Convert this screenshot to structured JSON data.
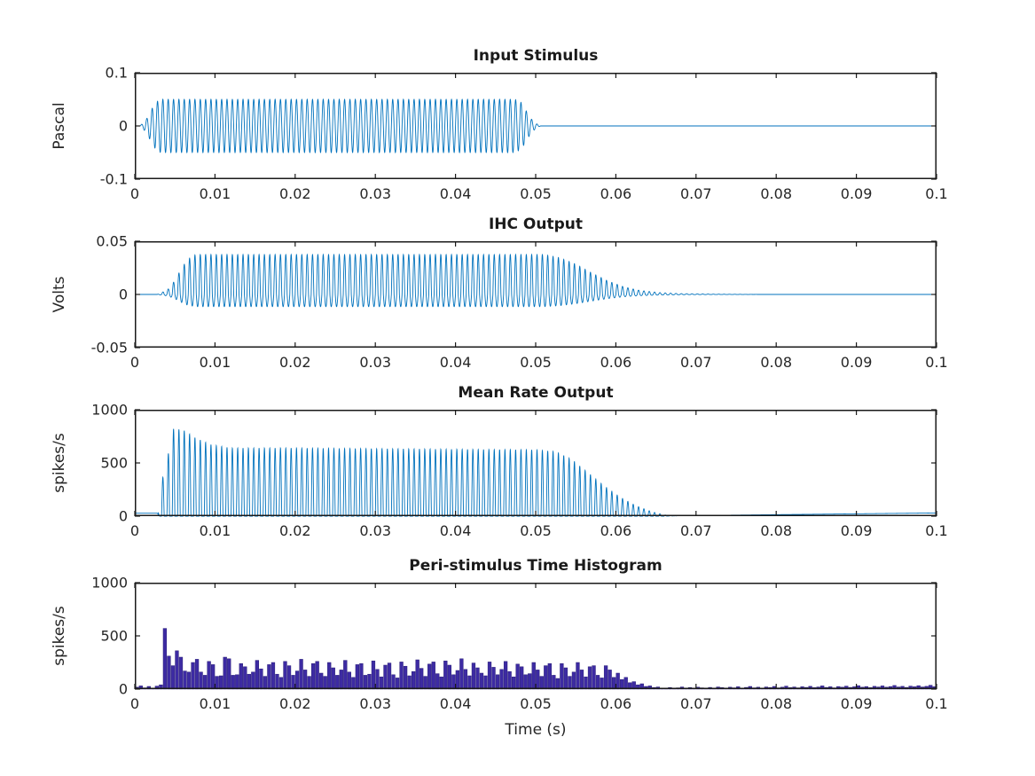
{
  "figure": {
    "background": "#ffffff"
  },
  "axis": {
    "xlim": [
      0,
      0.1
    ],
    "xticks": [
      0,
      0.01,
      0.02,
      0.03,
      0.04,
      0.05,
      0.06,
      0.07,
      0.08,
      0.09,
      0.1
    ],
    "xtick_labels": [
      "0",
      "0.01",
      "0.02",
      "0.03",
      "0.04",
      "0.05",
      "0.06",
      "0.07",
      "0.08",
      "0.09",
      "0.1"
    ],
    "frame_color": "#1a1a1a",
    "text_color": "#262626"
  },
  "chart_data": [
    {
      "type": "line",
      "title": "Input Stimulus",
      "ylabel": "Pascal",
      "ylim": [
        -0.1,
        0.1
      ],
      "yticks": [
        0.1,
        0,
        -0.1
      ],
      "ytick_labels": [
        "0.1",
        "0",
        "-0.1"
      ],
      "line_color": "#0072BD",
      "grid": false,
      "signal": {
        "kind": "tone",
        "freq": 1500,
        "amp_pos": 0.05,
        "amp_neg": 0.05,
        "envelope": [
          [
            0,
            0
          ],
          [
            0.0006,
            0
          ],
          [
            0.001,
            0.1
          ],
          [
            0.0015,
            0.28
          ],
          [
            0.002,
            0.58
          ],
          [
            0.0026,
            0.88
          ],
          [
            0.0032,
            1
          ],
          [
            0.0474,
            1
          ],
          [
            0.0482,
            0.88
          ],
          [
            0.0488,
            0.58
          ],
          [
            0.0494,
            0.28
          ],
          [
            0.05,
            0.1
          ],
          [
            0.0506,
            0
          ],
          [
            0.1,
            0
          ]
        ]
      }
    },
    {
      "type": "line",
      "title": "IHC Output",
      "ylabel": "Volts",
      "ylim": [
        -0.05,
        0.05
      ],
      "yticks": [
        0.05,
        0,
        -0.05
      ],
      "ytick_labels": [
        "0.05",
        "0",
        "-0.05"
      ],
      "line_color": "#0072BD",
      "grid": false,
      "signal": {
        "kind": "tone",
        "freq": 1500,
        "amp_pos": 0.0375,
        "amp_neg": 0.0115,
        "envelope": [
          [
            0,
            0
          ],
          [
            0.0028,
            0
          ],
          [
            0.0034,
            0.05
          ],
          [
            0.0042,
            0.14
          ],
          [
            0.005,
            0.35
          ],
          [
            0.0058,
            0.65
          ],
          [
            0.0066,
            0.88
          ],
          [
            0.0076,
            1
          ],
          [
            0.051,
            1
          ],
          [
            0.053,
            0.92
          ],
          [
            0.055,
            0.76
          ],
          [
            0.057,
            0.54
          ],
          [
            0.059,
            0.34
          ],
          [
            0.061,
            0.19
          ],
          [
            0.063,
            0.1
          ],
          [
            0.0655,
            0.045
          ],
          [
            0.068,
            0.02
          ],
          [
            0.072,
            0.008
          ],
          [
            0.078,
            0
          ],
          [
            0.1,
            0
          ]
        ]
      }
    },
    {
      "type": "line",
      "title": "Mean Rate Output",
      "ylabel": "spikes/s",
      "ylim": [
        0,
        1000
      ],
      "yticks": [
        1000,
        500,
        0
      ],
      "ytick_labels": [
        "1000",
        "500",
        "0"
      ],
      "line_color": "#0072BD",
      "grid": false,
      "signal": {
        "kind": "rate",
        "freq": 1500,
        "peak": 820,
        "exponent": 1.2,
        "envelope": [
          [
            0,
            0
          ],
          [
            0.0029,
            0
          ],
          [
            0.0033,
            0.44
          ],
          [
            0.004,
            0.46
          ],
          [
            0.0043,
            0.9
          ],
          [
            0.0048,
            1.0
          ],
          [
            0.006,
            0.99
          ],
          [
            0.0075,
            0.9
          ],
          [
            0.0095,
            0.82
          ],
          [
            0.012,
            0.78
          ],
          [
            0.02,
            0.78
          ],
          [
            0.035,
            0.77
          ],
          [
            0.05,
            0.76
          ],
          [
            0.0525,
            0.74
          ],
          [
            0.0545,
            0.65
          ],
          [
            0.0565,
            0.5
          ],
          [
            0.0585,
            0.35
          ],
          [
            0.0605,
            0.22
          ],
          [
            0.0625,
            0.12
          ],
          [
            0.0645,
            0.05
          ],
          [
            0.066,
            0.015
          ],
          [
            0.0675,
            0
          ],
          [
            0.1,
            0
          ]
        ],
        "baseline": [
          [
            0,
            28
          ],
          [
            0.0028,
            28
          ],
          [
            0.0031,
            0
          ],
          [
            0.066,
            0
          ],
          [
            0.068,
            4
          ],
          [
            0.08,
            14
          ],
          [
            0.1,
            30
          ]
        ]
      }
    },
    {
      "type": "bar",
      "title": "Peri-stimulus Time Histogram",
      "ylabel": "spikes/s",
      "xlabel": "Time (s)",
      "ylim": [
        0,
        1000
      ],
      "yticks": [
        1000,
        500,
        0
      ],
      "ytick_labels": [
        "1000",
        "500",
        "0"
      ],
      "bar_color": "#3D2BA3",
      "bar_edge": "#2A1E78",
      "grid": false,
      "bin_width": 0.0005,
      "values": [
        18,
        30,
        12,
        25,
        8,
        28,
        40,
        570,
        310,
        220,
        360,
        300,
        170,
        160,
        250,
        280,
        160,
        130,
        260,
        230,
        120,
        125,
        300,
        285,
        130,
        135,
        240,
        210,
        140,
        160,
        270,
        190,
        120,
        230,
        250,
        140,
        110,
        260,
        220,
        130,
        170,
        280,
        180,
        120,
        240,
        260,
        150,
        120,
        250,
        200,
        130,
        180,
        270,
        160,
        110,
        230,
        240,
        130,
        140,
        265,
        185,
        115,
        225,
        245,
        135,
        105,
        255,
        215,
        125,
        165,
        275,
        195,
        120,
        235,
        255,
        145,
        115,
        265,
        225,
        135,
        175,
        285,
        185,
        125,
        245,
        200,
        150,
        125,
        255,
        205,
        135,
        185,
        260,
        165,
        115,
        235,
        210,
        135,
        145,
        250,
        180,
        120,
        220,
        240,
        130,
        100,
        240,
        200,
        120,
        160,
        250,
        180,
        115,
        210,
        220,
        130,
        105,
        220,
        180,
        110,
        150,
        90,
        110,
        60,
        70,
        40,
        50,
        25,
        30,
        15,
        20,
        10,
        5,
        15,
        8,
        12,
        20,
        10,
        15,
        8,
        18,
        12,
        6,
        16,
        10,
        20,
        14,
        8,
        18,
        12,
        22,
        10,
        16,
        25,
        12,
        18,
        10,
        20,
        15,
        25,
        12,
        18,
        28,
        14,
        20,
        12,
        22,
        16,
        26,
        14,
        20,
        30,
        16,
        22,
        12,
        24,
        18,
        28,
        16,
        22,
        32,
        18,
        24,
        14,
        26,
        20,
        30,
        18,
        24,
        34,
        20,
        26,
        16,
        28,
        22,
        32,
        20,
        26,
        36,
        22
      ]
    }
  ]
}
